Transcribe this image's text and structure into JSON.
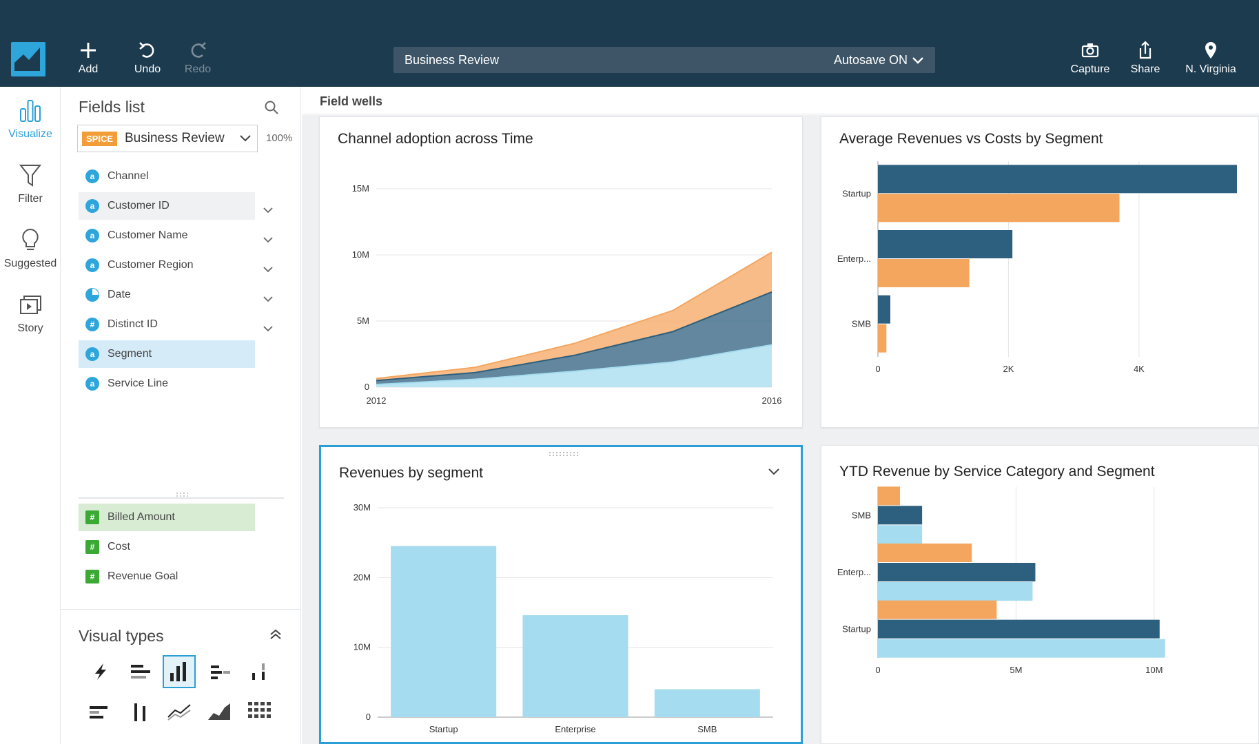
{
  "toolbar": {
    "add": "Add",
    "undo": "Undo",
    "redo": "Redo",
    "analysis_title": "Business Review",
    "autosave": "Autosave ON",
    "capture": "Capture",
    "share": "Share",
    "region": "N. Virginia"
  },
  "rail": {
    "visualize": "Visualize",
    "filter": "Filter",
    "suggested": "Suggested",
    "story": "Story"
  },
  "fields_panel": {
    "title": "Fields list",
    "spice": "SPICE",
    "dataset": "Business Review",
    "percent": "100%",
    "dimensions": [
      {
        "label": "Channel",
        "icon": "a"
      },
      {
        "label": "Customer ID",
        "icon": "a"
      },
      {
        "label": "Customer Name",
        "icon": "a"
      },
      {
        "label": "Customer Region",
        "icon": "a"
      },
      {
        "label": "Date",
        "icon": "clock"
      },
      {
        "label": "Distinct ID",
        "icon": "#"
      },
      {
        "label": "Segment",
        "icon": "a"
      },
      {
        "label": "Service Line",
        "icon": "a"
      }
    ],
    "measures": [
      {
        "label": "Billed Amount",
        "icon": "#"
      },
      {
        "label": "Cost",
        "icon": "#"
      },
      {
        "label": "Revenue Goal",
        "icon": "#"
      }
    ]
  },
  "visual_types": {
    "title": "Visual types"
  },
  "field_wells": "Field wells",
  "colors": {
    "topbar": "#1d3b4f",
    "accent": "#2a9fd6",
    "dark_series": "#2d5f7e",
    "orange_series": "#f4a65f",
    "light_series": "#a6dcef"
  },
  "chart_data": [
    {
      "type": "area",
      "title": "Channel adoption across Time",
      "x": [
        2012,
        2013,
        2014,
        2015,
        2016
      ],
      "x_tick_labels": [
        "2012",
        "2016"
      ],
      "y_tick_labels": [
        "0",
        "5M",
        "10M",
        "15M"
      ],
      "ylim": [
        0,
        15000000
      ],
      "stacked": true,
      "series": [
        {
          "color": "#a6dcef",
          "values": [
            200000,
            600000,
            1200000,
            1900000,
            3200000
          ]
        },
        {
          "color": "#2d5f7e",
          "values": [
            300000,
            500000,
            1200000,
            2300000,
            4000000
          ]
        },
        {
          "color": "#f4a65f",
          "values": [
            150000,
            400000,
            900000,
            1600000,
            3000000
          ]
        }
      ],
      "grid": true
    },
    {
      "type": "bar",
      "orientation": "horizontal",
      "title": "Average Revenues vs Costs by Segment",
      "categories": [
        "Startup",
        "Enterp...",
        "SMB"
      ],
      "x_tick_labels": [
        "0",
        "2K",
        "4K"
      ],
      "xlim": [
        0,
        5500
      ],
      "series": [
        {
          "color": "#2d5f7e",
          "values": [
            5500,
            2060,
            190
          ]
        },
        {
          "color": "#f4a65f",
          "values": [
            3700,
            1400,
            130
          ]
        }
      ],
      "grid": true
    },
    {
      "type": "bar",
      "title": "Revenues by segment",
      "categories": [
        "Startup",
        "Enterprise",
        "SMB"
      ],
      "values": [
        24500000,
        14600000,
        4000000
      ],
      "y_tick_labels": [
        "0",
        "10M",
        "20M",
        "30M"
      ],
      "ylim": [
        0,
        30000000
      ],
      "color": "#a6dcef",
      "grid": true
    },
    {
      "type": "bar",
      "orientation": "horizontal",
      "title": "YTD Revenue by Service Category and Segment",
      "categories": [
        "SMB",
        "Enterp...",
        "Startup"
      ],
      "x_tick_labels": [
        "0",
        "5M",
        "10M"
      ],
      "xlim": [
        0,
        13000000
      ],
      "series": [
        {
          "color": "#f4a65f",
          "values": [
            800000,
            3400000,
            4300000
          ]
        },
        {
          "color": "#2d5f7e",
          "values": [
            1600000,
            5700000,
            10200000
          ]
        },
        {
          "color": "#a6dcef",
          "values": [
            1600000,
            5600000,
            10400000
          ]
        }
      ],
      "grid": true
    }
  ]
}
